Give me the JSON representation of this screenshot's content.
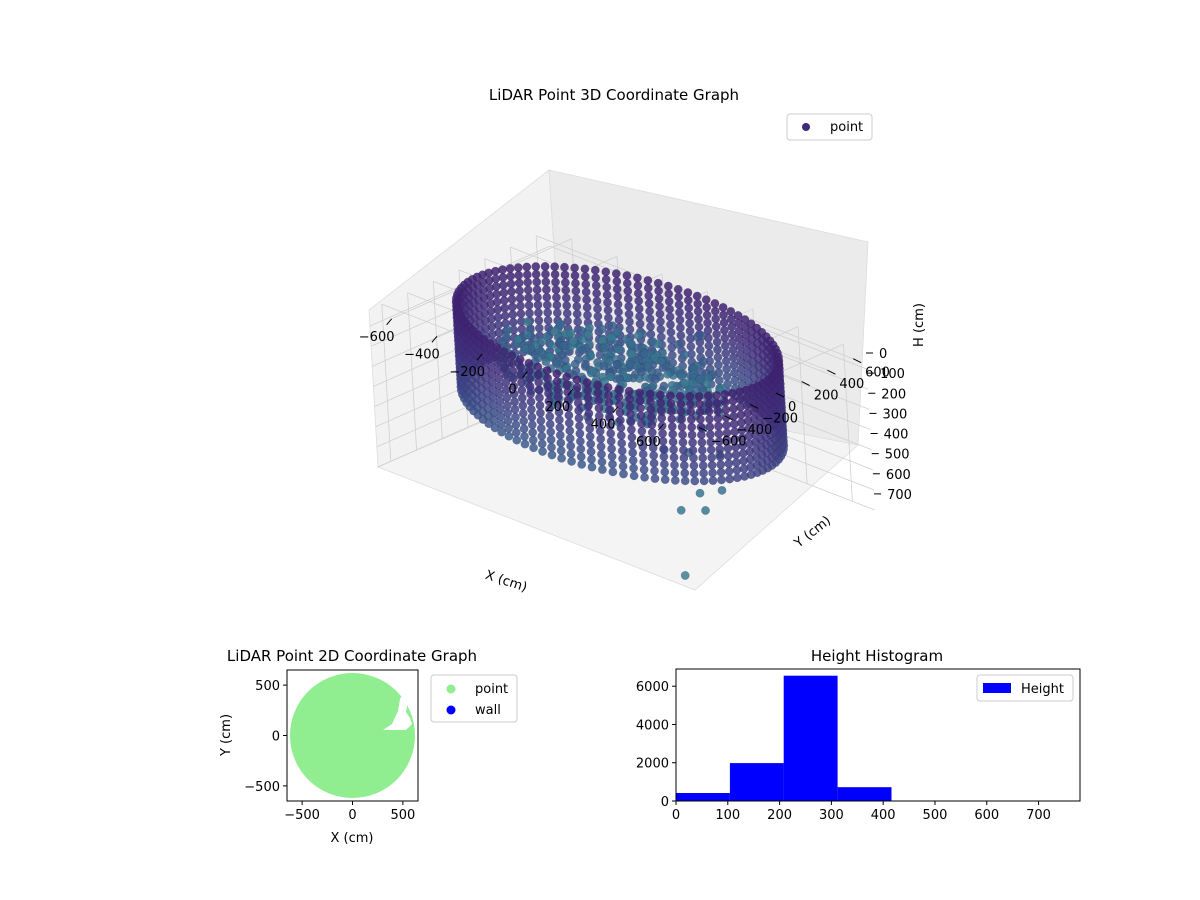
{
  "chart_data": [
    {
      "type": "scatter",
      "projection": "3d",
      "title": "LiDAR Point 3D Coordinate Graph",
      "xlabel": "X (cm)",
      "ylabel": "Y (cm)",
      "zlabel": "H (cm)",
      "xlim": [
        -700,
        700
      ],
      "ylim": [
        -700,
        700
      ],
      "zlim": [
        0,
        780
      ],
      "z_inverted": true,
      "xticks": [
        -600,
        -400,
        -200,
        0,
        200,
        400,
        600
      ],
      "yticks": [
        -600,
        -400,
        -200,
        0,
        200,
        400,
        600
      ],
      "zticks": [
        0,
        100,
        200,
        300,
        400,
        500,
        600,
        700
      ],
      "colormap": [
        "#3f1f6e",
        "#41307d",
        "#3e4a89",
        "#3a618d",
        "#35778f",
        "#4a7e95"
      ],
      "grid": true,
      "legend": {
        "placement": "top-right",
        "entries": [
          {
            "label": "point",
            "color": "#3f2b7a"
          }
        ]
      },
      "series": [
        {
          "name": "point",
          "description_of_shape": "cylindrical wall ring radius ~620 cm spanning heights 0-420 cm plus interior floor/object points",
          "wall_radius": 620,
          "wall_height": [
            0,
            420
          ],
          "interior_points": [
            [
              -100,
              50,
              230
            ],
            [
              0,
              100,
              260
            ],
            [
              100,
              -50,
              280
            ],
            [
              -200,
              0,
              250
            ],
            [
              50,
              200,
              240
            ],
            [
              200,
              150,
              300
            ],
            [
              -150,
              250,
              200
            ],
            [
              300,
              100,
              380
            ],
            [
              350,
              -100,
              420
            ],
            [
              400,
              50,
              450
            ],
            [
              450,
              -200,
              550
            ],
            [
              500,
              -250,
              600
            ],
            [
              520,
              -150,
              520
            ],
            [
              150,
              300,
              200
            ],
            [
              250,
              250,
              280
            ],
            [
              -50,
              -100,
              300
            ],
            [
              -250,
              -150,
              290
            ],
            [
              100,
              -200,
              350
            ],
            [
              0,
              0,
              270
            ],
            [
              -300,
              100,
              260
            ],
            [
              200,
              -150,
              330
            ],
            [
              300,
              -200,
              400
            ],
            [
              420,
              -300,
              620
            ],
            [
              80,
              320,
              120
            ],
            [
              150,
              350,
              60
            ],
            [
              180,
              340,
              40
            ],
            [
              600,
              -600,
              780
            ]
          ]
        }
      ]
    },
    {
      "type": "scatter",
      "title": "LiDAR Point 2D Coordinate Graph",
      "xlabel": "X (cm)",
      "ylabel": "Y (cm)",
      "xlim": [
        -650,
        650
      ],
      "ylim": [
        -650,
        650
      ],
      "xticks": [
        -500,
        0,
        500
      ],
      "yticks": [
        -500,
        0,
        500
      ],
      "legend": {
        "placement": "outside-right",
        "entries": [
          {
            "label": "point",
            "color": "#90ee90"
          },
          {
            "label": "wall",
            "color": "#0000ff"
          }
        ]
      },
      "series": [
        {
          "name": "point",
          "color": "#90ee90",
          "description_of_shape": "filled disc radius ~620 cm"
        },
        {
          "name": "wall",
          "color": "#0000ff",
          "values": []
        }
      ]
    },
    {
      "type": "bar",
      "subtype": "histogram",
      "title": "Height Histogram",
      "xlabel": "",
      "ylabel": "",
      "xlim": [
        0,
        780
      ],
      "ylim": [
        0,
        6900
      ],
      "xticks": [
        0,
        100,
        200,
        300,
        400,
        500,
        600,
        700
      ],
      "yticks": [
        0,
        2000,
        4000,
        6000
      ],
      "legend": {
        "placement": "top-right",
        "entries": [
          {
            "label": "Height",
            "color": "#0000ff"
          }
        ]
      },
      "bin_edges": [
        0,
        104,
        208,
        312,
        416,
        520,
        624,
        728,
        780
      ],
      "series": [
        {
          "name": "Height",
          "color": "#0000ff",
          "values": [
            420,
            1980,
            6550,
            720,
            15,
            8,
            5,
            3
          ]
        }
      ]
    }
  ]
}
